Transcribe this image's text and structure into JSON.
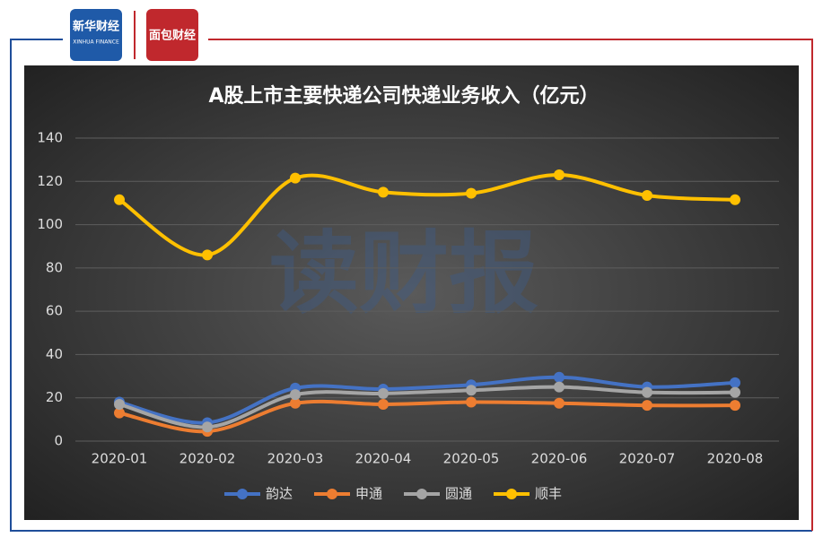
{
  "logos": {
    "left": "新华财经",
    "left_sub": "XINHUA FINANCE",
    "right": "面包财经"
  },
  "watermark": "读财报",
  "chart_data": {
    "type": "line",
    "title": "A股上市主要快递公司快递业务收入（亿元）",
    "categories": [
      "2020-01",
      "2020-02",
      "2020-03",
      "2020-04",
      "2020-05",
      "2020-06",
      "2020-07",
      "2020-08"
    ],
    "series": [
      {
        "name": "韵达",
        "color": "#4472c4",
        "values": [
          18,
          8.5,
          24.5,
          24,
          26,
          29.5,
          25,
          27
        ]
      },
      {
        "name": "申通",
        "color": "#ed7d31",
        "values": [
          13,
          4.5,
          17.5,
          17,
          18,
          17.5,
          16.5,
          16.5
        ]
      },
      {
        "name": "圆通",
        "color": "#a5a5a5",
        "values": [
          17,
          6.5,
          21.5,
          22,
          23.5,
          25,
          22.5,
          22.5
        ]
      },
      {
        "name": "顺丰",
        "color": "#ffc000",
        "values": [
          111.5,
          86,
          121.5,
          115,
          114.5,
          123,
          113.5,
          111.5
        ]
      }
    ],
    "ylim": [
      0,
      140
    ],
    "yticks": [
      0,
      20,
      40,
      60,
      80,
      100,
      120,
      140
    ],
    "grid": true,
    "smooth": true,
    "legend": "bottom"
  }
}
